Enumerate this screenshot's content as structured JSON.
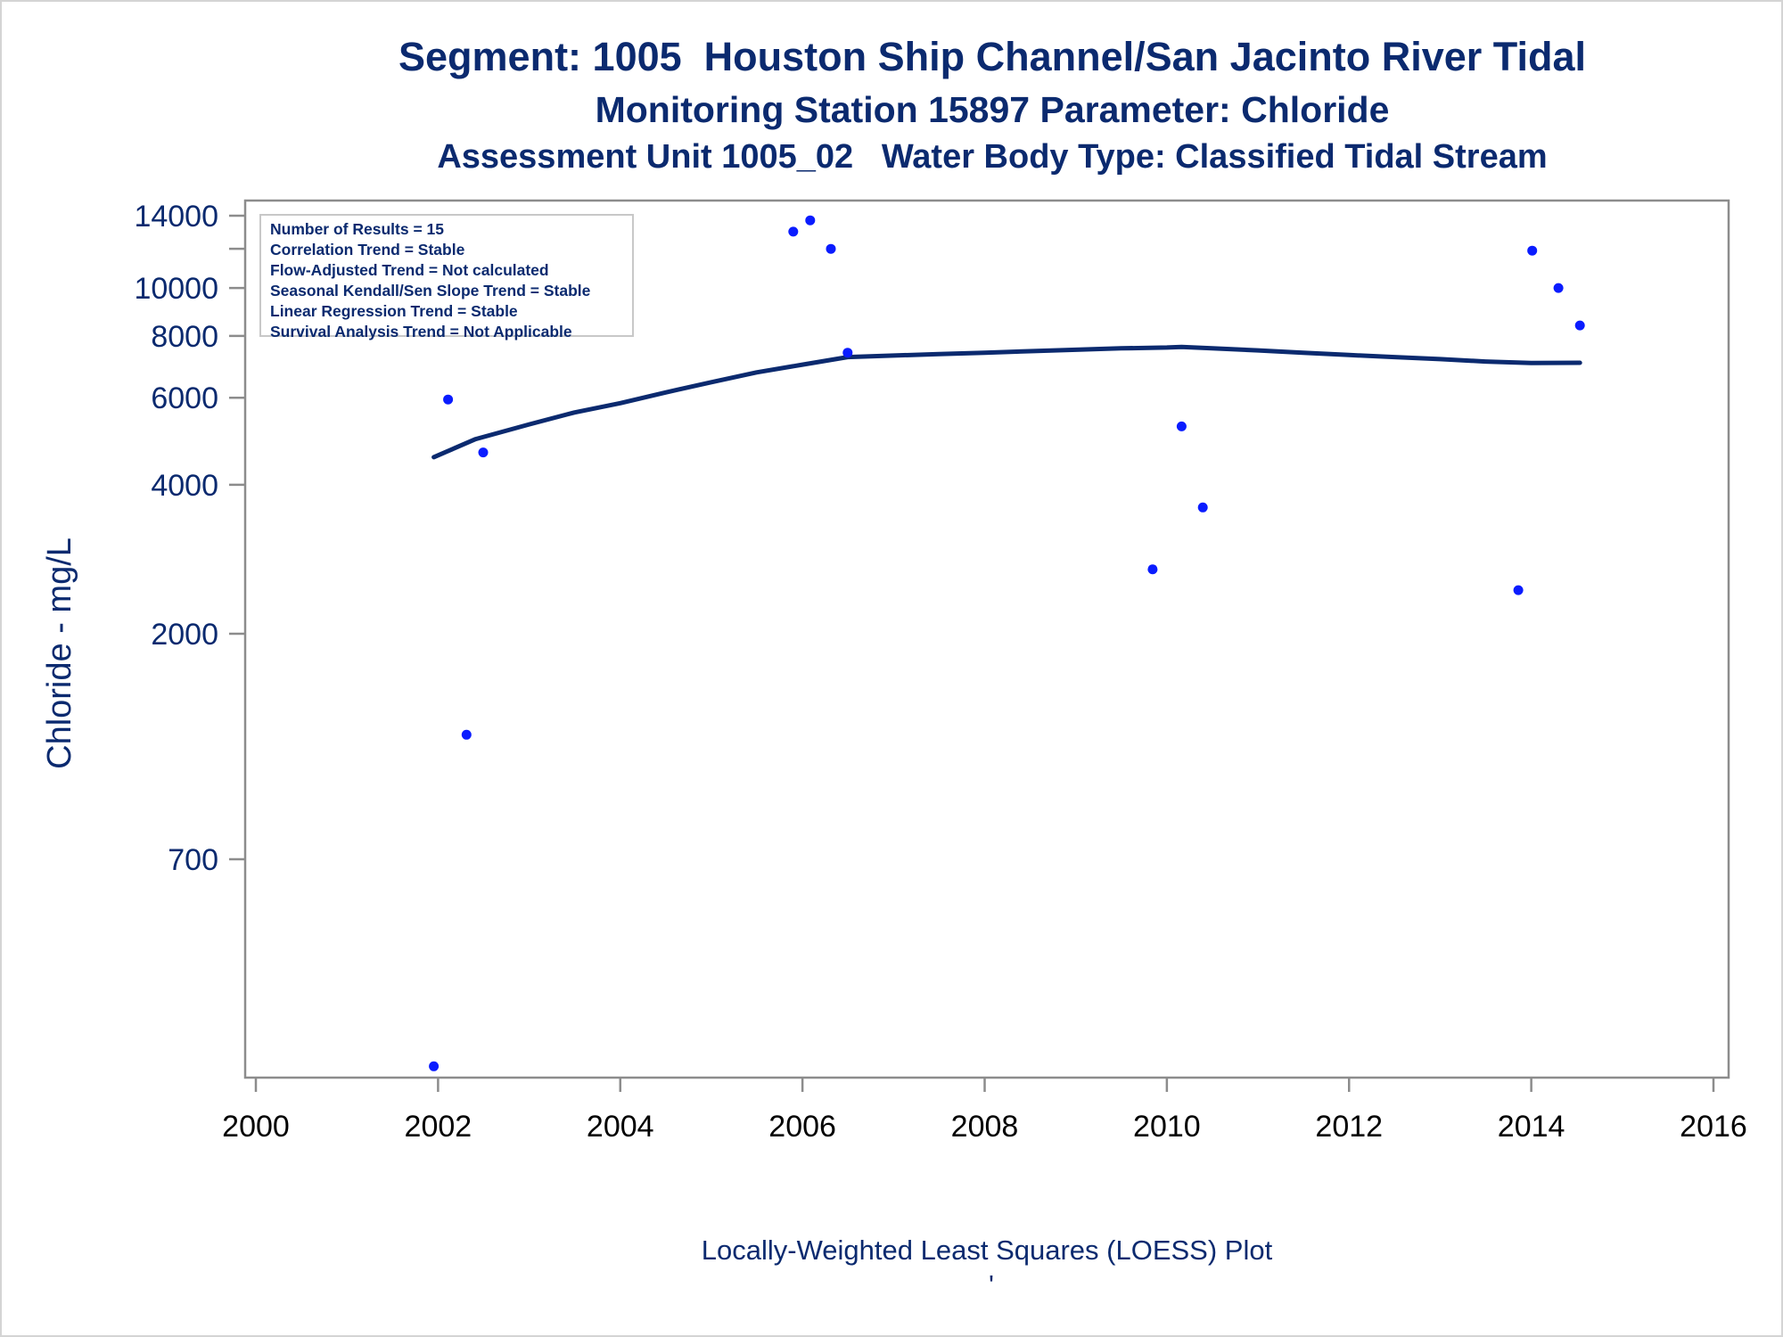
{
  "chart_data": {
    "type": "scatter",
    "title": "Segment: 1005  Houston Ship Channel/San Jacinto River Tidal",
    "subtitle": "Monitoring Station 15897 Parameter: Chloride",
    "subtitle2": "Assessment Unit 1005_02   Water Body Type: Classified Tidal Stream",
    "xlabel": "Locally-Weighted Least Squares (LOESS) Plot",
    "ylabel": "Chloride - mg/L",
    "yscale": "log",
    "xlim": [
      2000,
      2016
    ],
    "ylim": [
      250,
      14500
    ],
    "x_ticks": [
      "2000",
      "2002",
      "2004",
      "2006",
      "2008",
      "2010",
      "2012",
      "2014",
      "2016"
    ],
    "y_ticks": [
      {
        "value": 14000,
        "label": "14000"
      },
      {
        "value": 12000,
        "label": ""
      },
      {
        "value": 10000,
        "label": "10000"
      },
      {
        "value": 8000,
        "label": "8000"
      },
      {
        "value": 6000,
        "label": "6000"
      },
      {
        "value": 4000,
        "label": "4000"
      },
      {
        "value": 2000,
        "label": "2000"
      },
      {
        "value": 700,
        "label": "700"
      }
    ],
    "series": [
      {
        "kind": "points",
        "color": "#0a1cff",
        "x": [
          "2001-12-15",
          "2002-02-10",
          "2002-04-25",
          "2002-07-01",
          "2005-11-25",
          "2006-02-01",
          "2006-04-25",
          "2006-07-01",
          "2009-11-05",
          "2010-03-01",
          "2010-05-25",
          "2013-11-10",
          "2014-01-05",
          "2014-04-20",
          "2014-07-15"
        ],
        "y": [
          267,
          5950,
          1250,
          4650,
          13000,
          13700,
          12000,
          7400,
          2700,
          5250,
          3600,
          2450,
          11900,
          10000,
          8400
        ]
      },
      {
        "kind": "loess",
        "color": "#0b2a6f",
        "x": [
          "2001-12-15",
          "2002-06-01",
          "2003-01-01",
          "2003-07-01",
          "2004-01-01",
          "2004-07-01",
          "2005-01-01",
          "2005-07-01",
          "2006-01-01",
          "2006-07-01",
          "2007-01-01",
          "2007-07-01",
          "2008-01-01",
          "2008-07-01",
          "2009-01-01",
          "2009-07-01",
          "2010-01-01",
          "2010-03-01",
          "2010-07-01",
          "2011-01-01",
          "2011-07-01",
          "2012-01-01",
          "2012-07-01",
          "2013-01-01",
          "2013-07-01",
          "2014-01-01",
          "2014-07-15"
        ],
        "y": [
          4550,
          4950,
          5300,
          5600,
          5850,
          6150,
          6450,
          6750,
          7000,
          7250,
          7300,
          7350,
          7400,
          7450,
          7500,
          7550,
          7580,
          7600,
          7550,
          7480,
          7400,
          7320,
          7250,
          7180,
          7100,
          7050,
          7060
        ]
      }
    ]
  },
  "legend": [
    "Number of Results = 15",
    "Correlation Trend = Stable",
    "Flow-Adjusted Trend = Not calculated",
    "Seasonal Kendall/Sen Slope Trend = Stable",
    "Linear Regression Trend = Stable",
    "Survival Analysis Trend = Not Applicable"
  ],
  "footnote": "'"
}
